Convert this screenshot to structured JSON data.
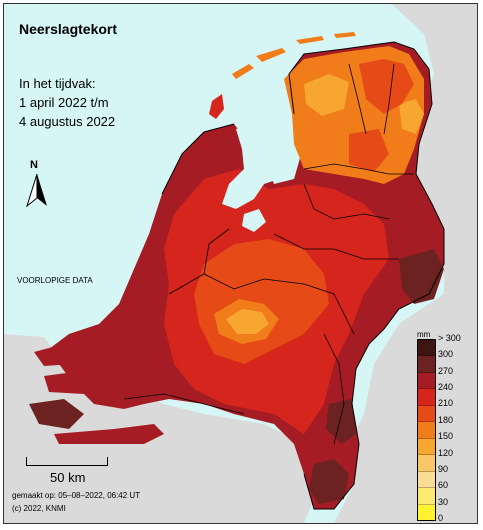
{
  "map": {
    "title": "Neerslagtekort",
    "period_label": "In het tijdvak:",
    "period_start": "1 april 2022 t/m",
    "period_end": "4 augustus 2022",
    "preliminary_note": "VOORLOPIGE DATA",
    "north_label": "N",
    "scale_label": "50 km",
    "made_on": "gemaakt op: 05–08–2022, 06:42 UT",
    "copyright": "(c) 2022, KNMI",
    "colors": {
      "sea": "#d6f6f6",
      "land_outside": "#dadada",
      "border": "#000000"
    }
  },
  "legend": {
    "unit": "mm",
    "ticks": [
      "> 300",
      "300",
      "270",
      "240",
      "210",
      "180",
      "150",
      "120",
      "90",
      "60",
      "30",
      "0"
    ],
    "bins": [
      {
        "range": "> 300",
        "color": "#3e1512"
      },
      {
        "range": "270–300",
        "color": "#6b2220"
      },
      {
        "range": "240–270",
        "color": "#a51c24"
      },
      {
        "range": "210–240",
        "color": "#d5251c"
      },
      {
        "range": "180–210",
        "color": "#e54a17"
      },
      {
        "range": "150–180",
        "color": "#f07c1a"
      },
      {
        "range": "120–150",
        "color": "#f6a631"
      },
      {
        "range": "90–120",
        "color": "#f9c66a"
      },
      {
        "range": "60–90",
        "color": "#fbdc95"
      },
      {
        "range": "30–60",
        "color": "#fdea70"
      },
      {
        "range": "0–30",
        "color": "#fff22f"
      }
    ]
  }
}
